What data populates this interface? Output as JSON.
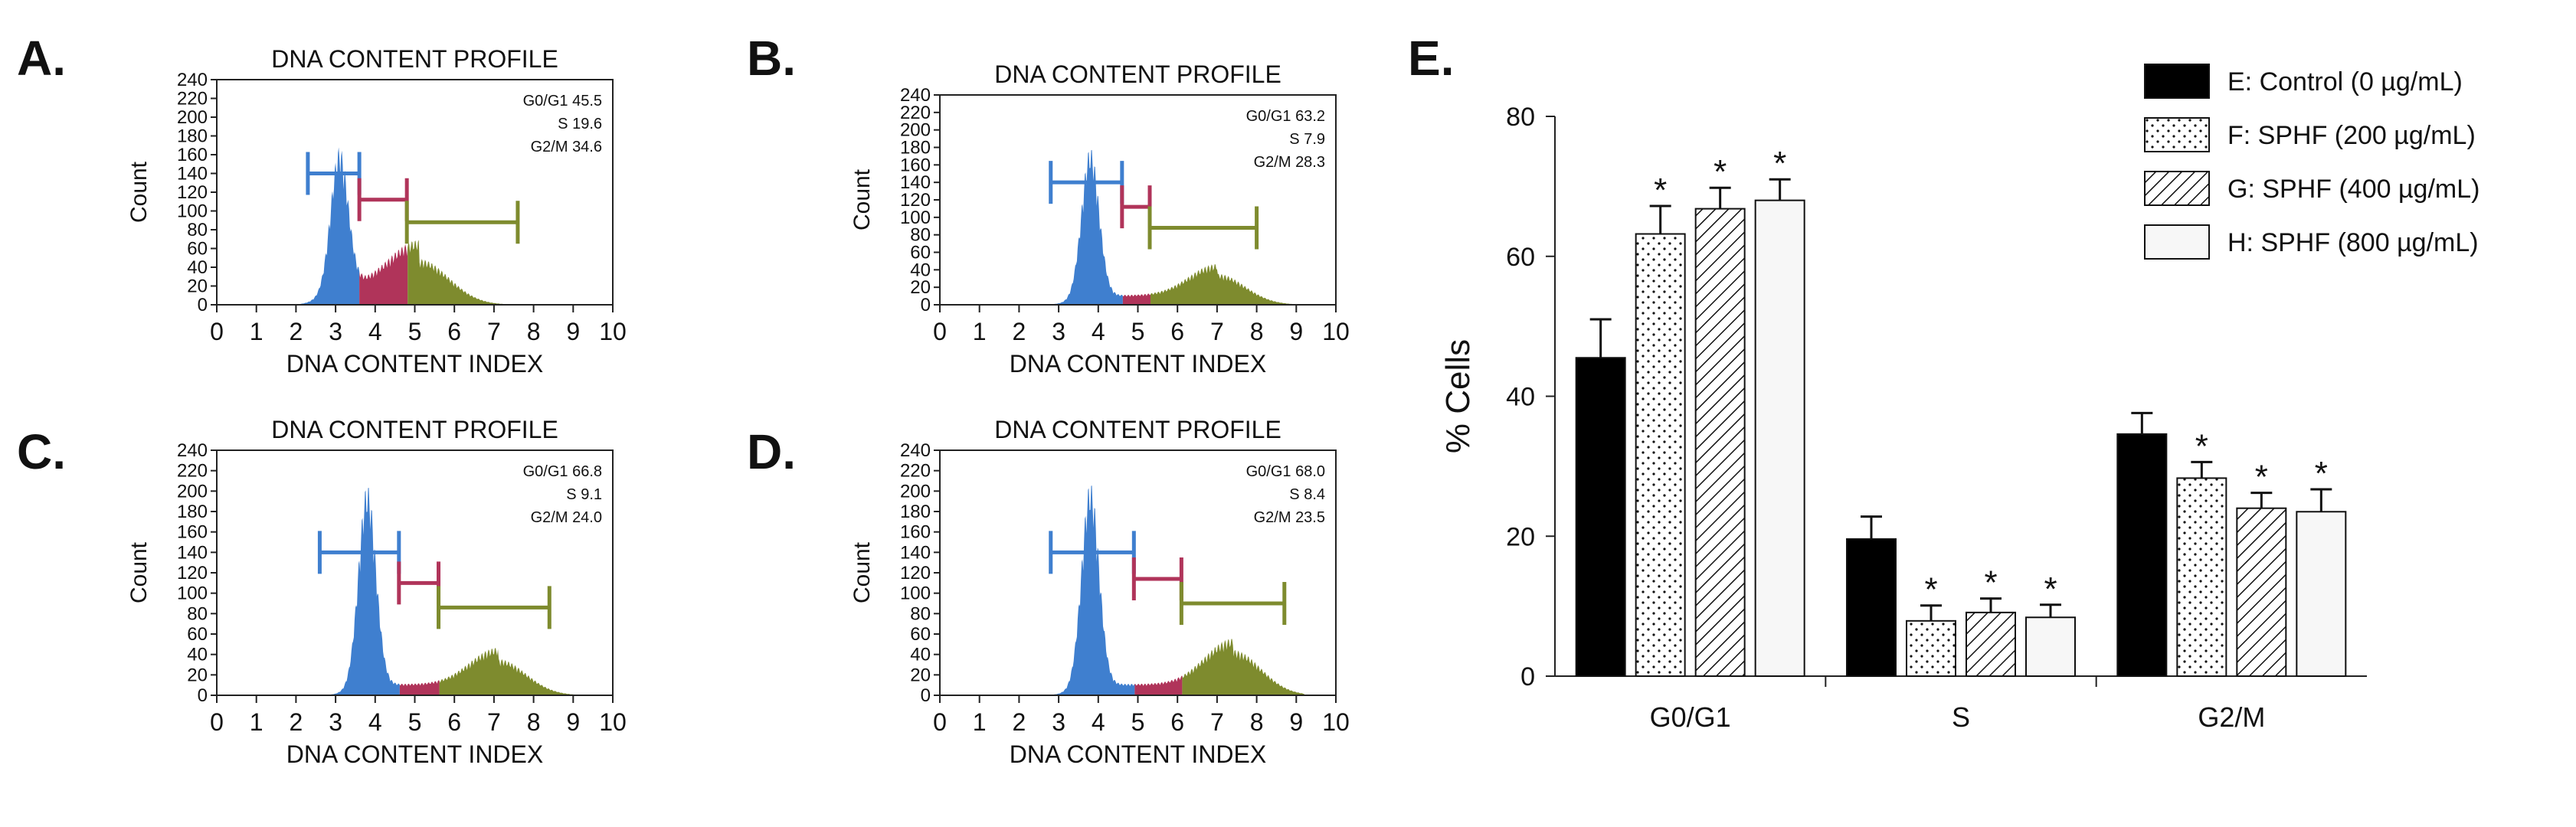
{
  "chart_data": [
    {
      "panel": "A.",
      "type": "area",
      "title": "DNA CONTENT PROFILE",
      "xlabel": "DNA CONTENT INDEX",
      "ylabel": "Count",
      "xlim": [
        0,
        10
      ],
      "ylim": [
        0,
        240
      ],
      "x_ticks": [
        "0",
        "1",
        "2",
        "3",
        "4",
        "5",
        "6",
        "7",
        "8",
        "9",
        "10"
      ],
      "y_ticks": [
        "0",
        "20",
        "40",
        "60",
        "80",
        "100",
        "120",
        "140",
        "160",
        "180",
        "200",
        "220",
        "240"
      ],
      "stats": [
        "G0/G1 45.5",
        "S 19.6",
        "G2/M 34.6"
      ],
      "colors": {
        "g1": "#3f7fcf",
        "s": "#b0345a",
        "g2m": "#7e8b2e"
      },
      "g1_peak": {
        "x": 3.1,
        "height": 132,
        "width": 0.22
      },
      "s_level": 18,
      "g2m_peak": {
        "x": 5.1,
        "height": 44,
        "width": 0.75
      },
      "gates": {
        "g1": {
          "from": 2.3,
          "to": 3.6,
          "y": 140
        },
        "s": {
          "from": 3.6,
          "to": 4.8,
          "y": 112
        },
        "g2m": {
          "from": 4.8,
          "to": 7.6,
          "y": 88
        }
      }
    },
    {
      "panel": "B.",
      "type": "area",
      "title": "DNA CONTENT PROFILE",
      "xlabel": "DNA CONTENT INDEX",
      "ylabel": "Count",
      "xlim": [
        0,
        10
      ],
      "ylim": [
        0,
        240
      ],
      "x_ticks": [
        "0",
        "1",
        "2",
        "3",
        "4",
        "5",
        "6",
        "7",
        "8",
        "9",
        "10"
      ],
      "y_ticks": [
        "0",
        "20",
        "40",
        "60",
        "80",
        "100",
        "120",
        "140",
        "160",
        "180",
        "200",
        "220",
        "240"
      ],
      "stats": [
        "G0/G1 63.2",
        "S 7.9",
        "G2/M 28.3"
      ],
      "colors": {
        "g1": "#3f7fcf",
        "s": "#b0345a",
        "g2m": "#7e8b2e"
      },
      "g1_peak": {
        "x": 3.8,
        "height": 152,
        "width": 0.22
      },
      "s_level": 10,
      "g2m_peak": {
        "x": 7.0,
        "height": 32,
        "width": 0.7
      },
      "gates": {
        "g1": {
          "from": 2.8,
          "to": 4.6,
          "y": 140
        },
        "s": {
          "from": 4.6,
          "to": 5.3,
          "y": 112
        },
        "g2m": {
          "from": 5.3,
          "to": 8.0,
          "y": 88
        }
      }
    },
    {
      "panel": "C.",
      "type": "area",
      "title": "DNA CONTENT PROFILE",
      "xlabel": "DNA CONTENT INDEX",
      "ylabel": "Count",
      "xlim": [
        0,
        10
      ],
      "ylim": [
        0,
        240
      ],
      "x_ticks": [
        "0",
        "1",
        "2",
        "3",
        "4",
        "5",
        "6",
        "7",
        "8",
        "9",
        "10"
      ],
      "y_ticks": [
        "0",
        "20",
        "40",
        "60",
        "80",
        "100",
        "120",
        "140",
        "160",
        "180",
        "200",
        "220",
        "240"
      ],
      "stats": [
        "G0/G1 66.8",
        "S 9.1",
        "G2/M 24.0"
      ],
      "colors": {
        "g1": "#3f7fcf",
        "s": "#b0345a",
        "g2m": "#7e8b2e"
      },
      "g1_peak": {
        "x": 3.8,
        "height": 176,
        "width": 0.22
      },
      "s_level": 10,
      "g2m_peak": {
        "x": 7.1,
        "height": 32,
        "width": 0.7
      },
      "gates": {
        "g1": {
          "from": 2.6,
          "to": 4.6,
          "y": 140
        },
        "s": {
          "from": 4.6,
          "to": 5.6,
          "y": 110
        },
        "g2m": {
          "from": 5.6,
          "to": 8.4,
          "y": 86
        }
      }
    },
    {
      "panel": "D.",
      "type": "area",
      "title": "DNA CONTENT PROFILE",
      "xlabel": "DNA CONTENT INDEX",
      "ylabel": "Count",
      "xlim": [
        0,
        10
      ],
      "ylim": [
        0,
        240
      ],
      "x_ticks": [
        "0",
        "1",
        "2",
        "3",
        "4",
        "5",
        "6",
        "7",
        "8",
        "9",
        "10"
      ],
      "y_ticks": [
        "0",
        "20",
        "40",
        "60",
        "80",
        "100",
        "120",
        "140",
        "160",
        "180",
        "200",
        "220",
        "240"
      ],
      "stats": [
        "G0/G1 68.0",
        "S 8.4",
        "G2/M 23.5"
      ],
      "colors": {
        "g1": "#3f7fcf",
        "s": "#b0345a",
        "g2m": "#7e8b2e"
      },
      "g1_peak": {
        "x": 3.8,
        "height": 178,
        "width": 0.22
      },
      "s_level": 10,
      "g2m_peak": {
        "x": 7.4,
        "height": 40,
        "width": 0.7
      },
      "gates": {
        "g1": {
          "from": 2.8,
          "to": 4.9,
          "y": 140
        },
        "s": {
          "from": 4.9,
          "to": 6.1,
          "y": 114
        },
        "g2m": {
          "from": 6.1,
          "to": 8.7,
          "y": 90
        }
      }
    },
    {
      "panel": "E.",
      "type": "bar",
      "title": "",
      "xlabel": "",
      "ylabel": "% Cells",
      "ylim": [
        0,
        80
      ],
      "y_ticks": [
        "0",
        "20",
        "40",
        "60",
        "80"
      ],
      "categories": [
        "G0/G1",
        "S",
        "G2/M"
      ],
      "series": [
        {
          "name": "E: Control (0 µg/mL)",
          "pattern": "solid",
          "values": [
            45.5,
            19.6,
            34.6
          ],
          "errors": [
            5.5,
            3.2,
            3.0
          ],
          "sig": [
            false,
            false,
            false
          ]
        },
        {
          "name": "F: SPHF (200 µg/mL)",
          "pattern": "dots",
          "values": [
            63.2,
            7.9,
            28.3
          ],
          "errors": [
            4.0,
            2.2,
            2.3
          ],
          "sig": [
            true,
            true,
            true
          ]
        },
        {
          "name": "G: SPHF (400 µg/mL)",
          "pattern": "hatch",
          "values": [
            66.8,
            9.1,
            24.0
          ],
          "errors": [
            3.0,
            2.0,
            2.2
          ],
          "sig": [
            true,
            true,
            true
          ]
        },
        {
          "name": "H: SPHF (800 µg/mL)",
          "pattern": "plain",
          "values": [
            68.0,
            8.4,
            23.5
          ],
          "errors": [
            3.0,
            1.8,
            3.2
          ],
          "sig": [
            true,
            true,
            true
          ]
        }
      ],
      "significance_mark": "*",
      "legend_position": "top-right"
    }
  ]
}
